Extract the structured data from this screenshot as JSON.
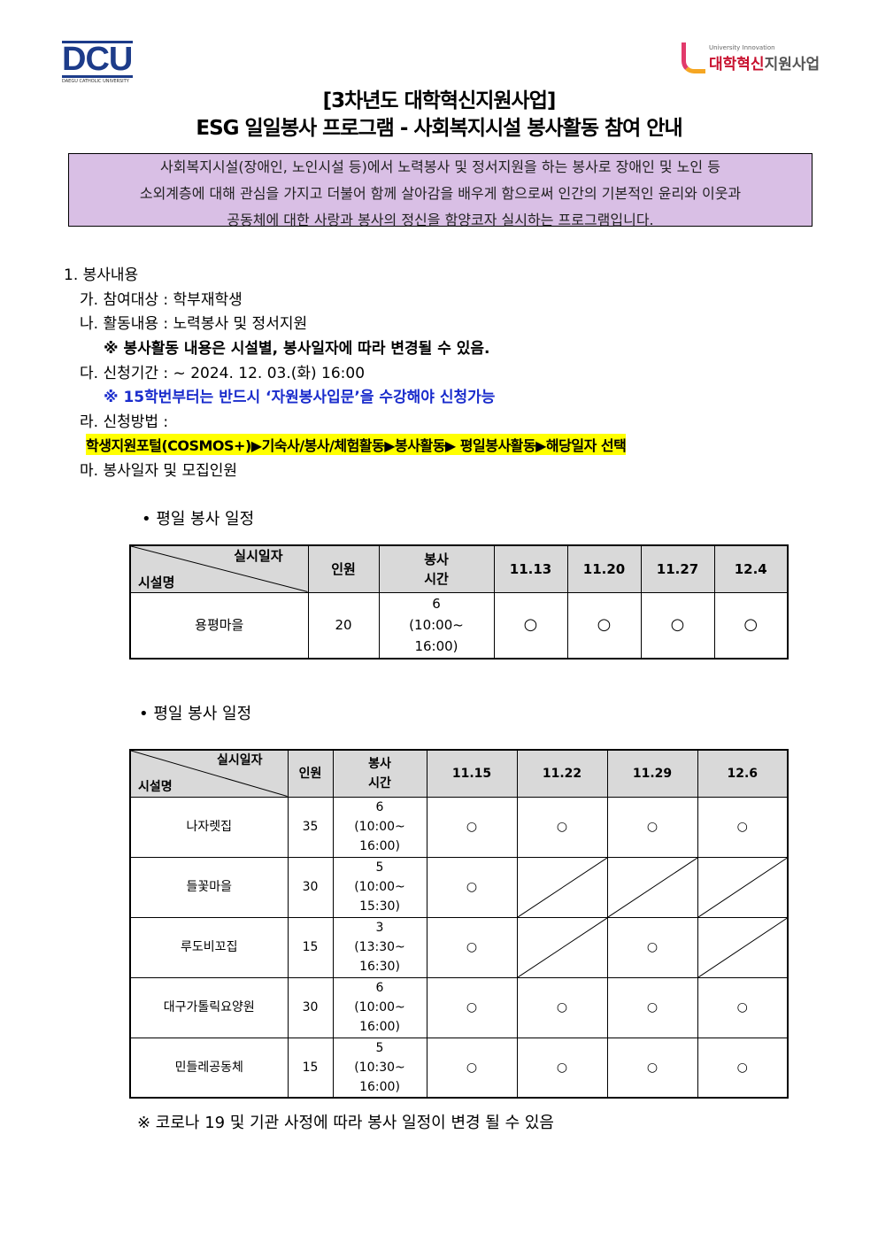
{
  "logos": {
    "left": "DCU",
    "left_sub": "DAEGU CATHOLIC UNIVERSITY",
    "right_small": "University Innovation",
    "right_red": "대학혁신",
    "right_grey": "지원사업"
  },
  "title": {
    "line1": "[3차년도 대학혁신지원사업]",
    "line2": "ESG 일일봉사 프로그램 - 사회복지시설 봉사활동 참여 안내"
  },
  "intro": [
    "사회복지시설(장애인, 노인시설 등)에서 노력봉사 및 정서지원을 하는 봉사로 장애인 및 노인 등",
    "소외계층에 대해 관심을 가지고 더불어 함께 살아감을 배우게 함으로써 인간의 기본적인 윤리와 이웃과",
    "공동체에 대한 사랑과 봉사의 정신을 함양코자 실시하는 프로그램입니다."
  ],
  "section": {
    "heading": "1. 봉사내용",
    "a": "가. 참여대상 : 학부재학생",
    "b": "나. 활동내용 : 노력봉사 및 정서지원",
    "b_note": "※ 봉사활동 내용은 시설별, 봉사일자에 따라 변경될 수 있음.",
    "c": "다. 신청기간 :  ~ 2024. 12. 03.(화) 16:00",
    "c_note": "※ 15학번부터는 반드시 ‘자원봉사입문’을 수강해야 신청가능",
    "d": "라. 신청방법 :",
    "d_path": "학생지원포털(COSMOS+)▶기숙사/봉사/체험활동▶봉사활동▶ 평일봉사활동▶해당일자 선택",
    "e": "마. 봉사일자 및 모집인원"
  },
  "table1": {
    "caption": "• 평일 봉사 일정",
    "head_top": "실시일자",
    "head_bottom": "시설명",
    "col_people": "인원",
    "col_time1": "봉사",
    "col_time2": "시간",
    "dates": [
      "11.13",
      "11.20",
      "11.27",
      "12.4"
    ],
    "rows": [
      {
        "name": "용평마을",
        "people": "20",
        "hours": "6",
        "time1": "(10:00~",
        "time2": "16:00)",
        "marks": [
          "○",
          "○",
          "○",
          "○"
        ]
      }
    ]
  },
  "table2": {
    "caption": "• 평일 봉사 일정",
    "head_top": "실시일자",
    "head_bottom": "시설명",
    "col_people": "인원",
    "col_time1": "봉사",
    "col_time2": "시간",
    "dates": [
      "11.15",
      "11.22",
      "11.29",
      "12.6"
    ],
    "rows": [
      {
        "name": "나자렛집",
        "people": "35",
        "hours": "6",
        "time1": "(10:00~",
        "time2": "16:00)",
        "marks": [
          "○",
          "○",
          "○",
          "○"
        ]
      },
      {
        "name": "들꽃마을",
        "people": "30",
        "hours": "5",
        "time1": "(10:00~",
        "time2": "15:30)",
        "marks": [
          "○",
          "/",
          "/",
          "/"
        ]
      },
      {
        "name": "루도비꼬집",
        "people": "15",
        "hours": "3",
        "time1": "(13:30~",
        "time2": "16:30)",
        "marks": [
          "○",
          "/",
          "○",
          "/"
        ]
      },
      {
        "name": "대구가톨릭요양원",
        "people": "30",
        "hours": "6",
        "time1": "(10:00~",
        "time2": "16:00)",
        "marks": [
          "○",
          "○",
          "○",
          "○"
        ]
      },
      {
        "name": "민들레공동체",
        "people": "15",
        "hours": "5",
        "time1": "(10:30~",
        "time2": "16:00)",
        "marks": [
          "○",
          "○",
          "○",
          "○"
        ]
      }
    ]
  },
  "footnote": "※ 코로나 19 및 기관 사정에 따라 봉사 일정이 변경 될 수 있음"
}
